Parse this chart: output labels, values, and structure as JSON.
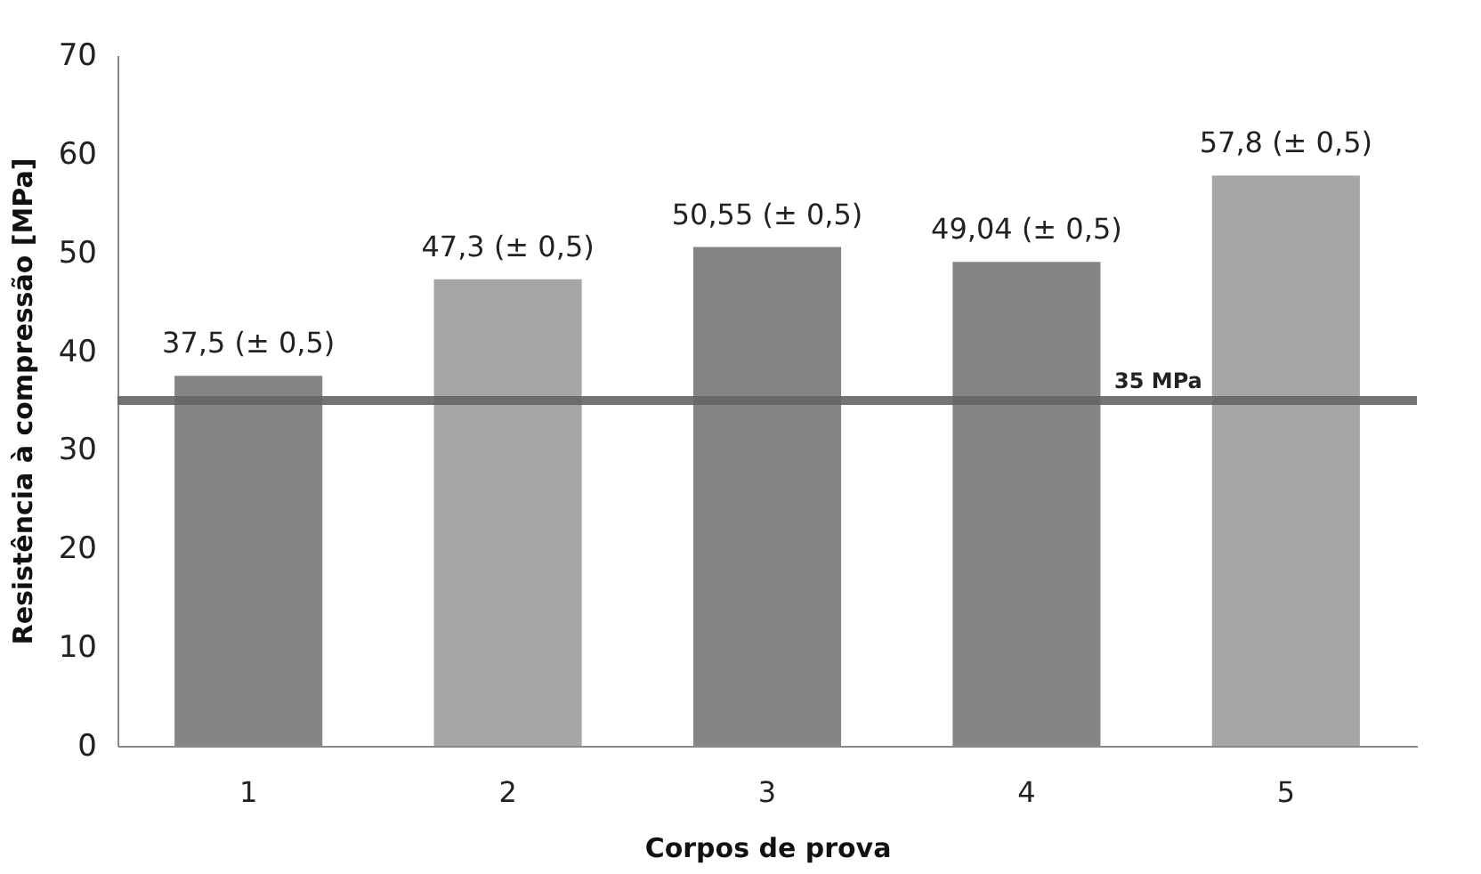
{
  "chart_data": {
    "type": "bar",
    "xlabel": "Corpos de prova",
    "ylabel": "Resistência à compressão [MPa]",
    "categories": [
      "1",
      "2",
      "3",
      "4",
      "5"
    ],
    "values": [
      37.5,
      47.3,
      50.55,
      49.04,
      57.8
    ],
    "colors": [
      "#858585",
      "#a6a6a6",
      "#858585",
      "#858585",
      "#a6a6a6"
    ],
    "value_labels": [
      "37,5 (± 0,5)",
      "47,3 (± 0,5)",
      "50,55 (± 0,5)",
      "49,04 (± 0,5)",
      "57,8 (± 0,5)"
    ],
    "ylim": [
      0,
      70
    ],
    "yticks": [
      0,
      10,
      20,
      30,
      40,
      50,
      60,
      70
    ],
    "ref_lines": [
      {
        "axis": "y",
        "value": 35,
        "label": "35 MPa",
        "color": "#656565"
      }
    ],
    "grid": false
  }
}
